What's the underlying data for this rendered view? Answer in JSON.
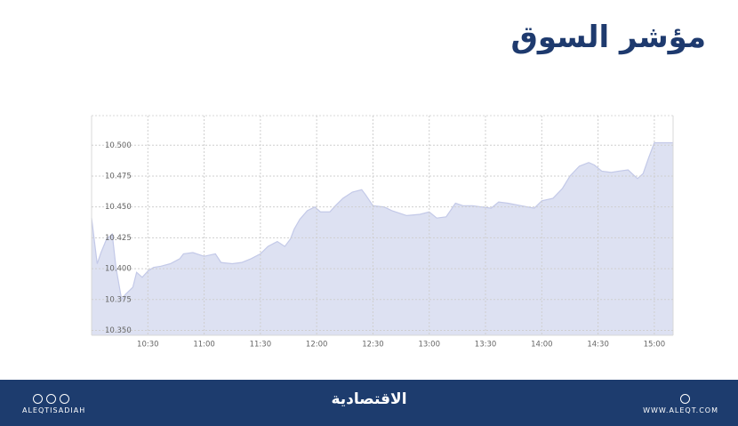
{
  "chart_data": {
    "type": "area",
    "title": "مؤشر السوق",
    "x": [
      "10:00",
      "10:03",
      "10:05",
      "10:08",
      "10:11",
      "10:13",
      "10:16",
      "10:18",
      "10:22",
      "10:24",
      "10:27",
      "10:30",
      "10:33",
      "10:37",
      "10:42",
      "10:47",
      "10:49",
      "10:54",
      "11:00",
      "11:06",
      "11:09",
      "11:15",
      "11:20",
      "11:25",
      "11:30",
      "11:34",
      "11:39",
      "11:43",
      "11:46",
      "11:48",
      "11:51",
      "11:55",
      "11:59",
      "12:02",
      "12:07",
      "12:10",
      "12:14",
      "12:19",
      "12:24",
      "12:26",
      "12:30",
      "12:36",
      "12:40",
      "12:48",
      "12:55",
      "13:00",
      "13:04",
      "13:09",
      "13:14",
      "13:18",
      "13:23",
      "13:28",
      "13:33",
      "13:37",
      "13:42",
      "13:49",
      "13:56",
      "14:00",
      "14:06",
      "14:11",
      "14:15",
      "14:20",
      "14:25",
      "14:28",
      "14:32",
      "14:37",
      "14:41",
      "14:46",
      "14:51",
      "14:54",
      "14:57",
      "15:00",
      "15:10"
    ],
    "values": [
      10.441,
      10.404,
      10.413,
      10.424,
      10.428,
      10.401,
      10.375,
      10.379,
      10.385,
      10.397,
      10.393,
      10.398,
      10.401,
      10.402,
      10.404,
      10.408,
      10.412,
      10.413,
      10.41,
      10.412,
      10.405,
      10.404,
      10.405,
      10.408,
      10.412,
      10.418,
      10.422,
      10.418,
      10.424,
      10.432,
      10.44,
      10.447,
      10.45,
      10.446,
      10.446,
      10.451,
      10.457,
      10.462,
      10.464,
      10.46,
      10.451,
      10.45,
      10.447,
      10.443,
      10.444,
      10.446,
      10.441,
      10.442,
      10.453,
      10.451,
      10.451,
      10.45,
      10.449,
      10.454,
      10.453,
      10.451,
      10.449,
      10.455,
      10.457,
      10.465,
      10.475,
      10.483,
      10.486,
      10.484,
      10.479,
      10.478,
      10.479,
      10.48,
      10.473,
      10.477,
      10.49,
      10.502,
      10.502
    ],
    "color": "#dde1f2",
    "line_color": "#c3c9e8",
    "xlim": [
      "10:00",
      "15:10"
    ],
    "xticks": [
      "10:30",
      "11:00",
      "11:30",
      "12:00",
      "12:30",
      "13:00",
      "13:30",
      "14:00",
      "14:30",
      "15:00"
    ],
    "ylim": [
      10.346,
      10.524
    ],
    "yticks": [
      {
        "value": 10.35,
        "label": "10.350"
      },
      {
        "value": 10.375,
        "label": "10.375"
      },
      {
        "value": 10.4,
        "label": "10.400"
      },
      {
        "value": 10.425,
        "label": "10.425"
      },
      {
        "value": 10.45,
        "label": "10.450"
      },
      {
        "value": 10.475,
        "label": "10.475"
      },
      {
        "value": 10.5,
        "label": "10.500"
      }
    ],
    "grid": true
  },
  "footer": {
    "handle": "ALEQTISADIAH",
    "logo": "الاقتصادية",
    "website": "WWW.ALEQT.COM"
  }
}
